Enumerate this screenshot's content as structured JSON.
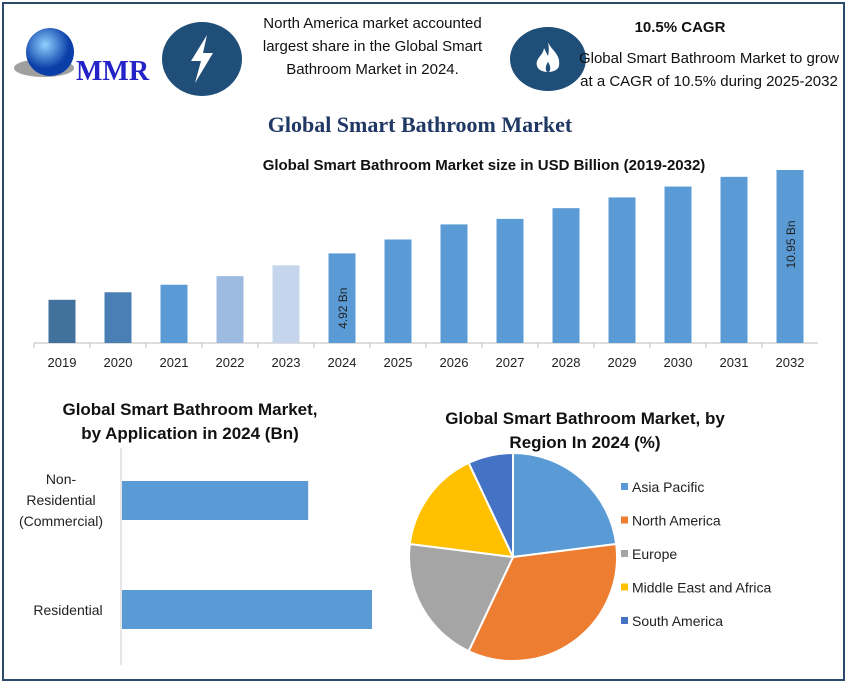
{
  "logo": {
    "text": "MMR"
  },
  "header": {
    "fact1": "North America market accounted largest share in the Global Smart Bathroom Market in 2024.",
    "cagr_title": "10.5% CAGR",
    "fact2": "Global Smart Bathroom Market to grow at a CAGR of 10.5% during 2025-2032",
    "icons": [
      "lightning-icon",
      "flame-icon"
    ],
    "title": "Global Smart Bathroom Market"
  },
  "colors": {
    "frame": "#2b4a6b",
    "icon_bg": "#1f4e79",
    "title": "#1f3864",
    "bar": "#5b9bd5"
  },
  "chart_data": [
    {
      "type": "bar",
      "title": "Global Smart Bathroom Market size in USD Billion (2019-2032)",
      "categories": [
        "2019",
        "2020",
        "2021",
        "2022",
        "2023",
        "2024",
        "2025",
        "2026",
        "2027",
        "2028",
        "2029",
        "2030",
        "2031",
        "2032"
      ],
      "values": [
        1.72,
        2.24,
        2.76,
        3.35,
        4.1,
        4.92,
        5.88,
        6.92,
        7.3,
        8.04,
        8.78,
        9.53,
        10.2,
        10.95
      ],
      "colors": [
        "#41719c",
        "#4a7fb5",
        "#5b9bd5",
        "#9dbbe0",
        "#c5d5ec",
        "#5b9bd5",
        "#5b9bd5",
        "#5b9bd5",
        "#5b9bd5",
        "#5b9bd5",
        "#5b9bd5",
        "#5b9bd5",
        "#5b9bd5",
        "#5b9bd5"
      ],
      "data_labels": {
        "2024": "4.92 Bn",
        "2032": "10.95 Bn"
      },
      "ylim": [
        -1.26,
        11.5
      ],
      "grid": false
    },
    {
      "type": "bar",
      "orientation": "horizontal",
      "title": "Global Smart Bathroom Market, by Application in 2024 (Bn)",
      "categories": [
        "Non-Residential (Commercial)",
        "Residential"
      ],
      "values": [
        2.1,
        2.82
      ],
      "xlim": [
        0,
        3.5
      ],
      "color": "#5b9bd5"
    },
    {
      "type": "pie",
      "title": "Global Smart Bathroom Market, by Region In 2024 (%)",
      "categories": [
        "Asia Pacific",
        "North America",
        "Europe",
        "Middle East and Africa",
        "South America"
      ],
      "values": [
        23,
        34,
        20,
        16,
        7
      ],
      "colors": [
        "#5b9bd5",
        "#ed7d31",
        "#a5a5a5",
        "#ffc000",
        "#4472c4"
      ],
      "legend": "right"
    }
  ]
}
